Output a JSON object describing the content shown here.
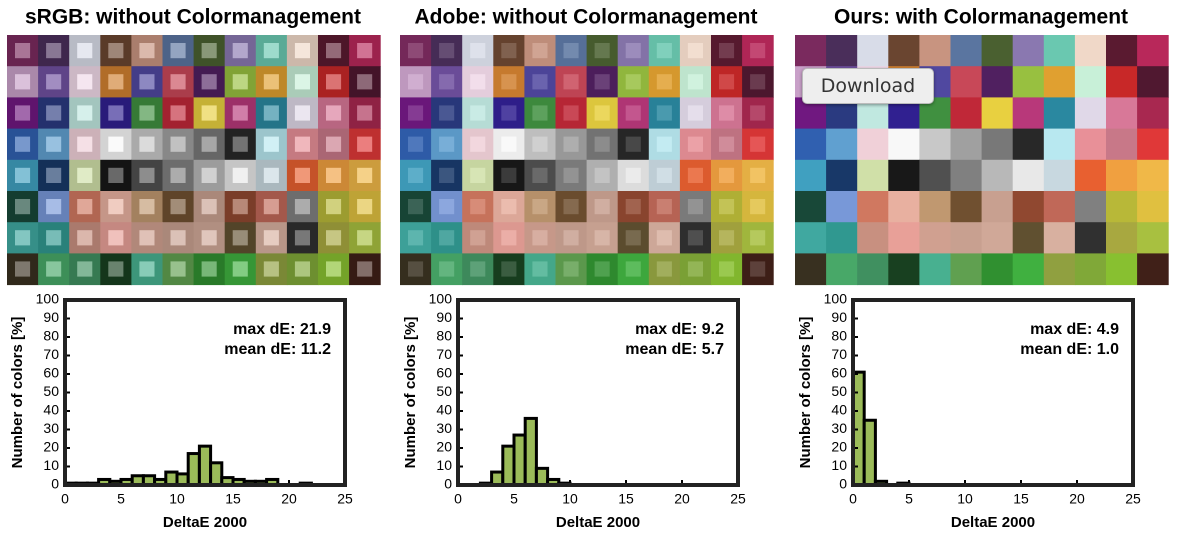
{
  "download_button": "Download",
  "chart_data": [
    {
      "type": "histogram",
      "title": "sRGB: without Colormanagement",
      "annotations": [
        "max dE: 21.9",
        "mean dE: 11.2"
      ],
      "xlabel": "DeltaE 2000",
      "ylabel": "Number of colors [%]",
      "bins": [
        0,
        1,
        2,
        3,
        4,
        5,
        6,
        7,
        8,
        9,
        10,
        11,
        12,
        13,
        14,
        15,
        16,
        17,
        18,
        19,
        20,
        21,
        22,
        23,
        24,
        25
      ],
      "values": [
        1,
        1,
        1,
        3,
        2,
        3,
        5,
        5,
        3,
        7,
        6,
        17,
        21,
        12,
        4,
        3,
        2,
        2,
        3,
        0,
        0,
        1,
        0,
        0,
        0
      ],
      "color": "#9bbb59",
      "xlim": [
        0,
        25
      ],
      "ylim": [
        0,
        100
      ],
      "xticks": [
        0,
        5,
        10,
        15,
        20,
        25
      ],
      "yticks": [
        0,
        10,
        20,
        30,
        40,
        50,
        60,
        70,
        80,
        90,
        100
      ]
    },
    {
      "type": "histogram",
      "title": "Adobe: without Colormanagement",
      "annotations": [
        "max dE: 9.2",
        "mean dE: 5.7"
      ],
      "xlabel": "DeltaE 2000",
      "ylabel": "Number of colors [%]",
      "bins": [
        0,
        1,
        2,
        3,
        4,
        5,
        6,
        7,
        8,
        9,
        10,
        11,
        12,
        13,
        14,
        15,
        16,
        17,
        18,
        19,
        20,
        21,
        22,
        23,
        24,
        25
      ],
      "values": [
        0,
        0,
        1,
        7,
        21,
        27,
        36,
        9,
        3,
        1,
        0,
        0,
        0,
        0,
        0,
        0,
        0,
        0,
        0,
        0,
        0,
        0,
        0,
        0,
        0
      ],
      "color": "#9bbb59",
      "xlim": [
        0,
        25
      ],
      "ylim": [
        0,
        100
      ],
      "xticks": [
        0,
        5,
        10,
        15,
        20,
        25
      ],
      "yticks": [
        0,
        10,
        20,
        30,
        40,
        50,
        60,
        70,
        80,
        90,
        100
      ]
    },
    {
      "type": "histogram",
      "title": "Ours: with Colormanagement",
      "annotations": [
        "max dE: 4.9",
        "mean dE: 1.0"
      ],
      "xlabel": "DeltaE 2000",
      "ylabel": "Number of colors [%]",
      "bins": [
        0,
        1,
        2,
        3,
        4,
        5,
        6,
        7,
        8,
        9,
        10,
        11,
        12,
        13,
        14,
        15,
        16,
        17,
        18,
        19,
        20,
        21,
        22,
        23,
        24,
        25
      ],
      "values": [
        61,
        35,
        2,
        0,
        1,
        0,
        0,
        0,
        0,
        0,
        0,
        0,
        0,
        0,
        0,
        0,
        0,
        0,
        0,
        0,
        0,
        0,
        0,
        0,
        0
      ],
      "color": "#9bbb59",
      "xlim": [
        0,
        25
      ],
      "ylim": [
        0,
        100
      ],
      "xticks": [
        0,
        5,
        10,
        15,
        20,
        25
      ],
      "yticks": [
        0,
        10,
        20,
        30,
        40,
        50,
        60,
        70,
        80,
        90,
        100
      ]
    }
  ]
}
